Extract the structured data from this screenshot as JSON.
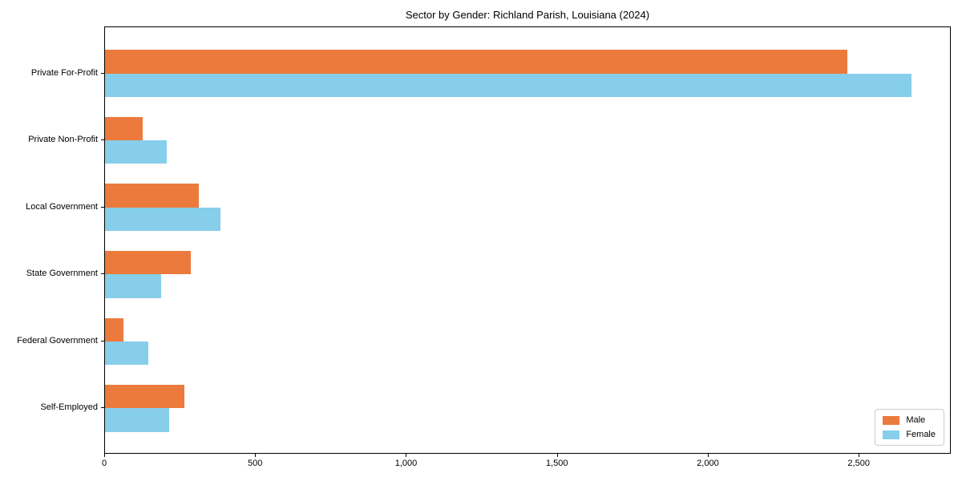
{
  "title": "Sector by Gender: Richland Parish, Louisiana (2024)",
  "colors": {
    "male": "#EC7A3C",
    "female": "#87CEEB",
    "axis": "#000000",
    "legend_border": "#cccccc",
    "background": "#ffffff"
  },
  "legend": {
    "position": "lower right",
    "items": [
      {
        "label": "Male",
        "color": "#EC7A3C"
      },
      {
        "label": "Female",
        "color": "#87CEEB"
      }
    ]
  },
  "chart_data": {
    "type": "bar",
    "orientation": "horizontal",
    "title": "Sector by Gender: Richland Parish, Louisiana (2024)",
    "categories": [
      "Private For-Profit",
      "Private Non-Profit",
      "Local Government",
      "State Government",
      "Federal Government",
      "Self-Employed"
    ],
    "series": [
      {
        "name": "Male",
        "color": "#EC7A3C",
        "values": [
          2460,
          124,
          310,
          285,
          62,
          264
        ]
      },
      {
        "name": "Female",
        "color": "#87CEEB",
        "values": [
          2672,
          205,
          383,
          186,
          143,
          213
        ]
      }
    ],
    "xlabel": "",
    "ylabel": "",
    "xlim": [
      0,
      2805
    ],
    "x_ticks": [
      0,
      500,
      1000,
      1500,
      2000,
      2500
    ],
    "x_tick_labels": [
      "0",
      "500",
      "1,000",
      "1,500",
      "2,000",
      "2,500"
    ],
    "grid": false,
    "legend_position": "lower right"
  }
}
